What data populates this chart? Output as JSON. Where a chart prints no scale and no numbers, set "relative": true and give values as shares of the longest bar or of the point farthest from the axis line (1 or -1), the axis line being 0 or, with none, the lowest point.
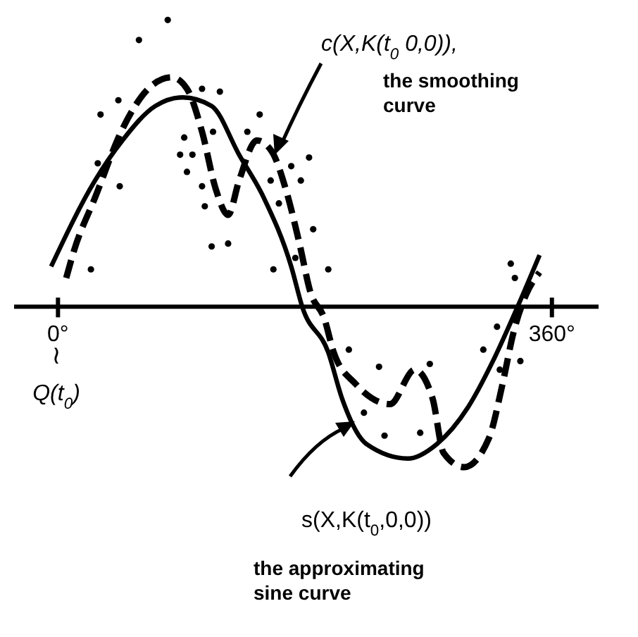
{
  "chart_data": {
    "type": "line",
    "relative": true,
    "xlim": [
      -32,
      394
    ],
    "xticks": [
      {
        "value": 0,
        "label": "0°"
      },
      {
        "value": 360,
        "label": "360°"
      }
    ],
    "tick_labels": "x",
    "legend": false,
    "series": [
      {
        "type": "line",
        "name": "c(X,K(t$_{0}$ 0,0)),",
        "color": "#000000",
        "line_style": "dashed",
        "x": [
          6,
          12,
          27,
          47,
          68,
          83,
          94,
          105,
          115,
          124,
          132,
          145,
          156,
          166,
          176,
          184,
          194,
          201,
          217,
          242,
          260,
          273,
          281,
          296,
          314,
          324,
          332,
          341,
          351
        ],
        "values": [
          0.1,
          0.2,
          0.38,
          0.62,
          0.77,
          0.8,
          0.76,
          0.61,
          0.41,
          0.32,
          0.44,
          0.58,
          0.54,
          0.41,
          0.22,
          0.05,
          -0.04,
          -0.16,
          -0.27,
          -0.34,
          -0.22,
          -0.32,
          -0.51,
          -0.56,
          -0.46,
          -0.27,
          -0.09,
          0.04,
          0.12
        ]
      },
      {
        "type": "line",
        "name": "s(X,K(t$_{0}$,0,0))",
        "color": "#000000",
        "line_style": "solid",
        "x": [
          -5,
          27,
          47,
          71,
          91,
          112,
          132,
          150,
          170,
          178,
          197,
          207,
          225,
          255,
          276,
          299,
          317,
          335,
          351
        ],
        "values": [
          0.14,
          0.44,
          0.58,
          0.7,
          0.73,
          0.7,
          0.53,
          0.38,
          0.14,
          0,
          -0.16,
          -0.32,
          -0.48,
          -0.53,
          -0.48,
          -0.35,
          -0.19,
          0,
          0.18
        ]
      },
      {
        "type": "scatter",
        "color": "#000000",
        "marker": "circle",
        "x": [
          80,
          59,
          44,
          31,
          29,
          45,
          24,
          105,
          118,
          147,
          92,
          113,
          89,
          98,
          94,
          105,
          107,
          112,
          124,
          138,
          157,
          155,
          161,
          170,
          177,
          183,
          186,
          173,
          197,
          212,
          234,
          271,
          223,
          238,
          264,
          320,
          310,
          330,
          333,
          337,
          322
        ],
        "values": [
          1.0,
          0.93,
          0.72,
          0.67,
          0.5,
          0.42,
          0.13,
          0.76,
          0.75,
          0.67,
          0.59,
          0.61,
          0.53,
          0.53,
          0.47,
          0.42,
          0.35,
          0.21,
          0.22,
          0.61,
          0.13,
          0.44,
          0.36,
          0.49,
          0.44,
          0.52,
          0.27,
          0.17,
          0.13,
          -0.15,
          -0.21,
          -0.2,
          -0.37,
          -0.45,
          -0.44,
          -0.07,
          -0.15,
          0.15,
          0.1,
          -0.19,
          -0.22
        ]
      }
    ],
    "annotations": [
      "the smoothing\ncurve",
      "the approximating\nsine curve",
      "≀",
      "Q(t$_{0}$)"
    ]
  }
}
